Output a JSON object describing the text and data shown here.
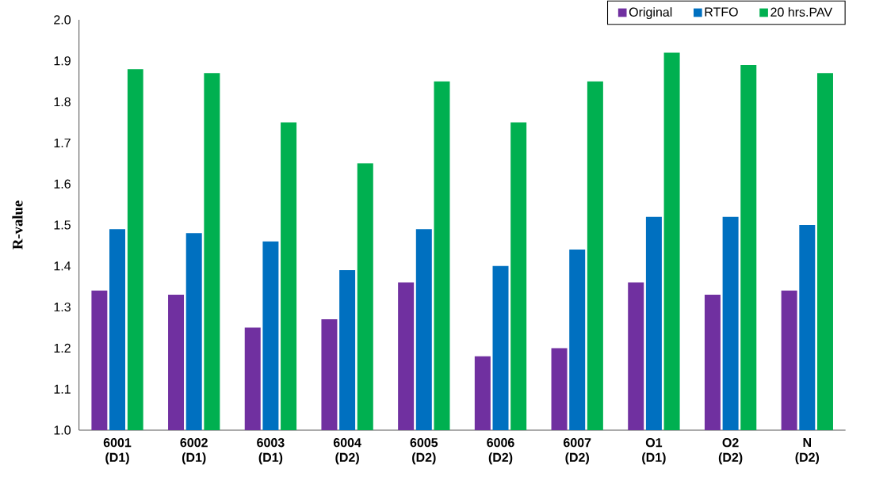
{
  "chart_data": {
    "type": "bar",
    "ylabel": "R-value",
    "categories": [
      "6001 (D1)",
      "6002 (D1)",
      "6003 (D1)",
      "6004 (D2)",
      "6005 (D2)",
      "6006 (D2)",
      "6007 (D2)",
      "O1 (D1)",
      "O2 (D2)",
      "N (D2)"
    ],
    "series": [
      {
        "name": "Original",
        "color": "#7030a0",
        "values": [
          1.34,
          1.33,
          1.25,
          1.27,
          1.36,
          1.18,
          1.2,
          1.36,
          1.33,
          1.34
        ]
      },
      {
        "name": "RTFO",
        "color": "#0070c0",
        "values": [
          1.49,
          1.48,
          1.46,
          1.39,
          1.49,
          1.4,
          1.44,
          1.52,
          1.52,
          1.5
        ]
      },
      {
        "name": "20 hrs.PAV",
        "color": "#00b050",
        "values": [
          1.88,
          1.87,
          1.75,
          1.65,
          1.85,
          1.75,
          1.85,
          1.92,
          1.89,
          1.87
        ]
      }
    ],
    "ylim": [
      1.0,
      2.0
    ],
    "yticks": [
      {
        "value": 1.0,
        "label": "1.0"
      },
      1.1,
      1.2,
      1.3,
      1.4,
      1.5,
      1.6,
      1.7,
      1.8,
      1.9,
      {
        "value": 2.0,
        "label": "2.0"
      }
    ],
    "grid": false,
    "legend": "top right"
  }
}
